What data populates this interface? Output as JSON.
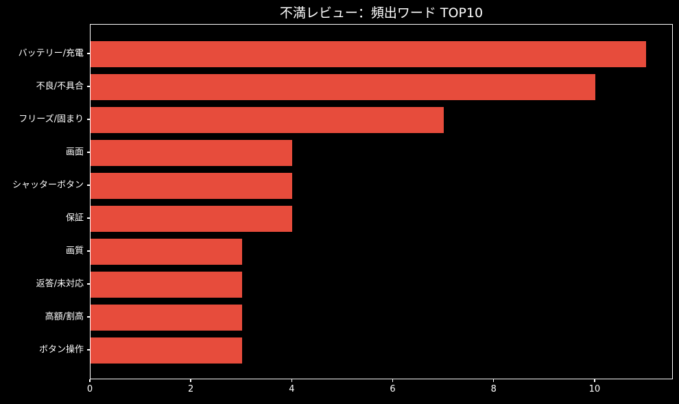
{
  "chart_data": {
    "type": "bar",
    "orientation": "horizontal",
    "title": "不満レビュー：頻出ワード TOP10",
    "categories": [
      "バッテリー/充電",
      "不良/不具合",
      "フリーズ/固まり",
      "画面",
      "シャッターボタン",
      "保証",
      "画質",
      "返答/未対応",
      "高額/割高",
      "ボタン操作"
    ],
    "values": [
      11,
      10,
      7,
      4,
      4,
      4,
      3,
      3,
      3,
      3
    ],
    "xlabel": "",
    "ylabel": "",
    "x_ticks": [
      0,
      2,
      4,
      6,
      8,
      10
    ],
    "xlim": [
      0,
      11.55
    ],
    "grid": false,
    "legend": null,
    "bar_fraction": 0.8,
    "colors": {
      "background": "#000000",
      "bar": "#e74c3c",
      "text": "#ffffff",
      "spine": "#ffffff"
    }
  }
}
